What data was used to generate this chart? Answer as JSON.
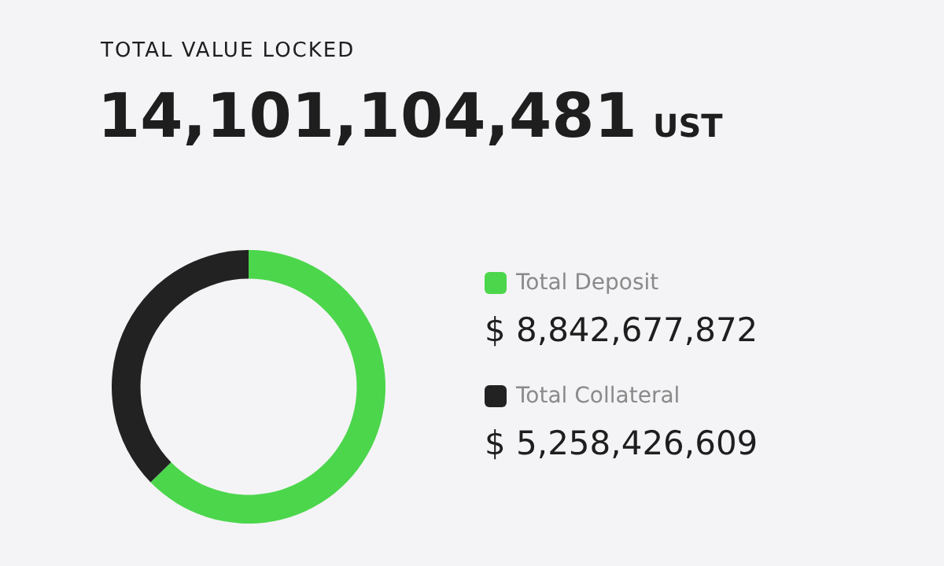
{
  "chart_data": {
    "type": "donut",
    "title": "TOTAL VALUE LOCKED",
    "subtitle": "14,101,104,481 UST",
    "categories": [
      "Total Deposit",
      "Total Collateral"
    ],
    "values": [
      8842677872,
      5258426609
    ],
    "value_labels": [
      "$ 8,842,677,872",
      "$ 5,258,426,609"
    ],
    "colors": [
      "#4cd64c",
      "#222222"
    ],
    "legend": "right"
  }
}
